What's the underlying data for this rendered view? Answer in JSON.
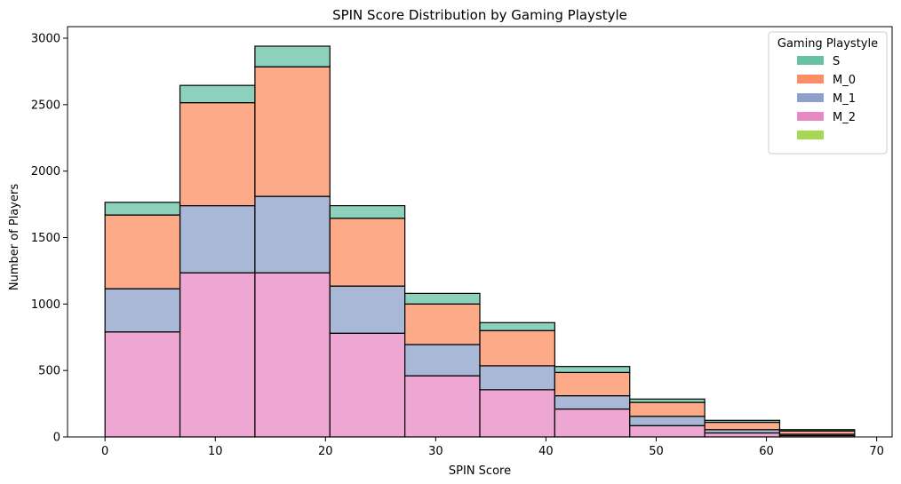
{
  "chart_data": {
    "type": "bar",
    "stacked": true,
    "title": "SPIN Score Distribution by Gaming Playstyle",
    "xlabel": "SPIN Score",
    "ylabel": "Number of Players",
    "xlim": [
      -3.4,
      71.4
    ],
    "ylim": [
      0,
      3087
    ],
    "xticks": [
      0,
      10,
      20,
      30,
      40,
      50,
      60,
      70
    ],
    "yticks": [
      0,
      500,
      1000,
      1500,
      2000,
      2500,
      3000
    ],
    "bin_edges": [
      0,
      6.8,
      13.6,
      20.4,
      27.2,
      34,
      40.8,
      47.6,
      54.4,
      61.2,
      68
    ],
    "series": [
      {
        "name": "M_2",
        "color": "#e78ac3",
        "values": [
          790,
          1235,
          1235,
          780,
          460,
          355,
          210,
          85,
          30,
          10
        ]
      },
      {
        "name": "M_1",
        "color": "#8da0cb",
        "values": [
          325,
          505,
          575,
          355,
          235,
          180,
          100,
          70,
          25,
          10
        ]
      },
      {
        "name": "M_0",
        "color": "#fc8d62",
        "values": [
          555,
          775,
          975,
          510,
          305,
          265,
          175,
          105,
          55,
          25
        ]
      },
      {
        "name": "S",
        "color": "#66c2a5",
        "values": [
          95,
          130,
          155,
          95,
          80,
          60,
          45,
          25,
          15,
          10
        ]
      },
      {
        "name": "",
        "color": "#a6d854",
        "values": [
          0,
          0,
          0,
          0,
          0,
          0,
          0,
          0,
          0,
          0
        ]
      }
    ],
    "legend": {
      "title": "Gaming Playstyle",
      "placement": "upper right",
      "entries": [
        {
          "label": "S",
          "color": "#66c2a5"
        },
        {
          "label": "M_0",
          "color": "#fc8d62"
        },
        {
          "label": "M_1",
          "color": "#8da0cb"
        },
        {
          "label": "M_2",
          "color": "#e78ac3"
        },
        {
          "label": "",
          "color": "#a6d854"
        }
      ]
    },
    "grid": false
  }
}
